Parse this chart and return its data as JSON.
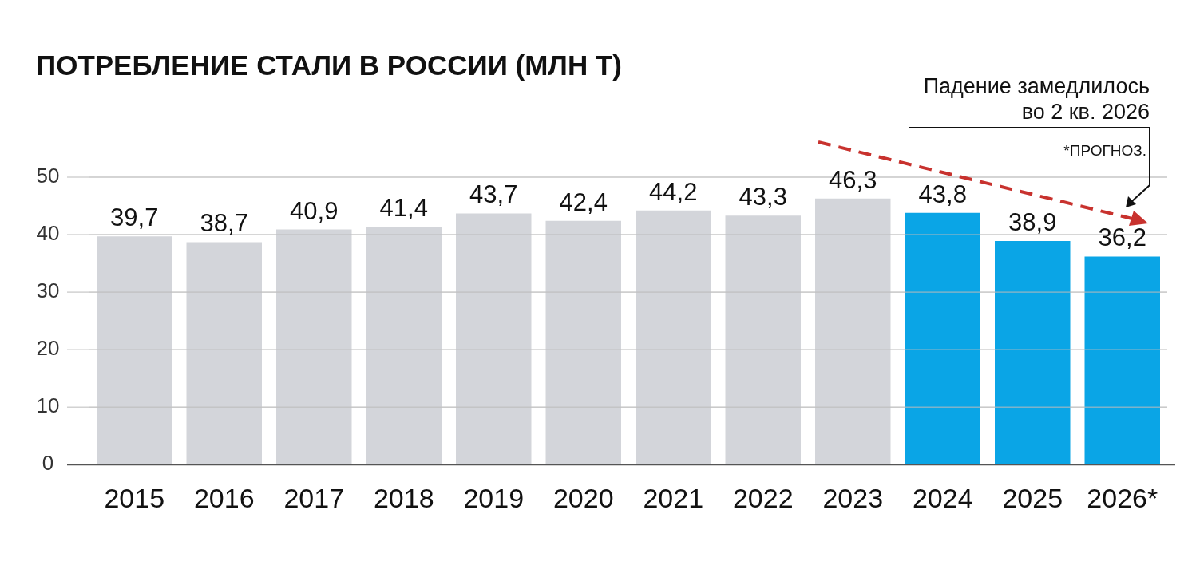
{
  "chart_data": {
    "type": "bar",
    "title": "ПОТРЕБЛЕНИЕ СТАЛИ В РОССИИ (МЛН Т)",
    "categories": [
      "2015",
      "2016",
      "2017",
      "2018",
      "2019",
      "2020",
      "2021",
      "2022",
      "2023",
      "2024",
      "2025",
      "2026*"
    ],
    "values": [
      39.7,
      38.7,
      40.9,
      41.4,
      43.7,
      42.4,
      44.2,
      43.3,
      46.3,
      43.8,
      38.9,
      36.2
    ],
    "colors": [
      "#d3d5da",
      "#d3d5da",
      "#d3d5da",
      "#d3d5da",
      "#d3d5da",
      "#d3d5da",
      "#d3d5da",
      "#d3d5da",
      "#d3d5da",
      "#0aa5e6",
      "#0aa5e6",
      "#0aa5e6"
    ],
    "value_labels": [
      "39,7",
      "38,7",
      "40,9",
      "41,4",
      "43,7",
      "42,4",
      "44,2",
      "43,3",
      "46,3",
      "43,8",
      "38,9",
      "36,2"
    ],
    "ylim": [
      0,
      50
    ],
    "yticks": [
      0,
      10,
      20,
      30,
      40,
      50
    ],
    "grid": "y",
    "annotations": [
      "Падение замедлилось\nво 2 кв. 2026",
      "*ПРОГНОЗ."
    ]
  }
}
